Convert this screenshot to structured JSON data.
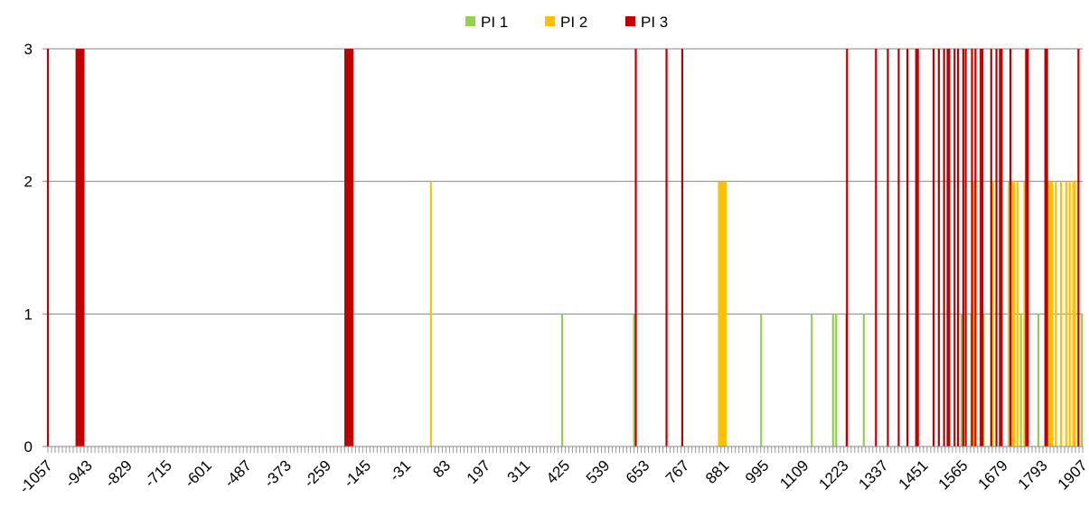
{
  "chart_data": {
    "type": "bar",
    "title": "",
    "xlabel": "",
    "ylabel": "",
    "xlim": [
      -1057,
      1907
    ],
    "ylim": [
      0,
      3
    ],
    "y_ticks": [
      0,
      1,
      2,
      3
    ],
    "x_tick_labels": [
      "-1057",
      "-943",
      "-829",
      "-715",
      "-601",
      "-487",
      "-373",
      "-259",
      "-145",
      "-31",
      "83",
      "197",
      "311",
      "425",
      "539",
      "653",
      "767",
      "881",
      "995",
      "1109",
      "1223",
      "1337",
      "1451",
      "1565",
      "1679",
      "1793",
      "1907"
    ],
    "grid": "horizontal",
    "legend_position": "top-center",
    "colors": {
      "PI 1": "#92d050",
      "PI 2": "#ffc000",
      "PI 3": "#c00000"
    },
    "series": [
      {
        "name": "PI 1",
        "color": "#92d050",
        "points": [
          {
            "x": 416,
            "y": 1
          },
          {
            "x": 622,
            "y": 1
          },
          {
            "x": 986,
            "y": 1
          },
          {
            "x": 1131,
            "y": 1
          },
          {
            "x": 1192,
            "y": 1
          },
          {
            "x": 1201,
            "y": 1
          },
          {
            "x": 1280,
            "y": 1
          },
          {
            "x": 1560,
            "y": 1
          },
          {
            "x": 1588,
            "y": 1
          },
          {
            "x": 1623,
            "y": 1
          },
          {
            "x": 1730,
            "y": 1
          },
          {
            "x": 1780,
            "y": 1
          },
          {
            "x": 1905,
            "y": 1
          }
        ]
      },
      {
        "name": "PI 2",
        "color": "#ffc000",
        "points": [
          {
            "x": 40,
            "y": 2
          },
          {
            "x": 865,
            "y": 2
          },
          {
            "x": 870,
            "y": 2
          },
          {
            "x": 875,
            "y": 2
          },
          {
            "x": 880,
            "y": 2
          },
          {
            "x": 885,
            "y": 2
          },
          {
            "x": 1595,
            "y": 2
          },
          {
            "x": 1650,
            "y": 2
          },
          {
            "x": 1695,
            "y": 2
          },
          {
            "x": 1705,
            "y": 2
          },
          {
            "x": 1710,
            "y": 2
          },
          {
            "x": 1720,
            "y": 2
          },
          {
            "x": 1740,
            "y": 2
          },
          {
            "x": 1810,
            "y": 2
          },
          {
            "x": 1815,
            "y": 2
          },
          {
            "x": 1820,
            "y": 2
          },
          {
            "x": 1830,
            "y": 2
          },
          {
            "x": 1845,
            "y": 2
          },
          {
            "x": 1860,
            "y": 2
          },
          {
            "x": 1870,
            "y": 2
          },
          {
            "x": 1880,
            "y": 2
          },
          {
            "x": 1885,
            "y": 2
          }
        ]
      },
      {
        "name": "PI 3",
        "color": "#c00000",
        "points": [
          {
            "x": -1057,
            "y": 3
          },
          {
            "x": -975,
            "y": 3
          },
          {
            "x": -970,
            "y": 3
          },
          {
            "x": -965,
            "y": 3
          },
          {
            "x": -960,
            "y": 3
          },
          {
            "x": -955,
            "y": 3
          },
          {
            "x": -205,
            "y": 3
          },
          {
            "x": -200,
            "y": 3
          },
          {
            "x": -195,
            "y": 3
          },
          {
            "x": -190,
            "y": 3
          },
          {
            "x": -185,
            "y": 3
          },
          {
            "x": 627,
            "y": 3
          },
          {
            "x": 715,
            "y": 3
          },
          {
            "x": 760,
            "y": 3
          },
          {
            "x": 1231,
            "y": 1
          },
          {
            "x": 1232,
            "y": 3
          },
          {
            "x": 1315,
            "y": 3
          },
          {
            "x": 1349,
            "y": 3
          },
          {
            "x": 1380,
            "y": 3
          },
          {
            "x": 1405,
            "y": 3
          },
          {
            "x": 1430,
            "y": 3
          },
          {
            "x": 1435,
            "y": 3
          },
          {
            "x": 1480,
            "y": 3
          },
          {
            "x": 1495,
            "y": 3
          },
          {
            "x": 1510,
            "y": 3
          },
          {
            "x": 1520,
            "y": 3
          },
          {
            "x": 1525,
            "y": 3
          },
          {
            "x": 1540,
            "y": 3
          },
          {
            "x": 1550,
            "y": 3
          },
          {
            "x": 1565,
            "y": 3
          },
          {
            "x": 1572,
            "y": 3
          },
          {
            "x": 1590,
            "y": 3
          },
          {
            "x": 1600,
            "y": 3
          },
          {
            "x": 1615,
            "y": 3
          },
          {
            "x": 1620,
            "y": 3
          },
          {
            "x": 1645,
            "y": 3
          },
          {
            "x": 1660,
            "y": 3
          },
          {
            "x": 1670,
            "y": 3
          },
          {
            "x": 1675,
            "y": 3
          },
          {
            "x": 1700,
            "y": 3
          },
          {
            "x": 1745,
            "y": 3
          },
          {
            "x": 1750,
            "y": 3
          },
          {
            "x": 1800,
            "y": 3
          },
          {
            "x": 1805,
            "y": 3
          },
          {
            "x": 1895,
            "y": 3
          }
        ]
      }
    ]
  }
}
